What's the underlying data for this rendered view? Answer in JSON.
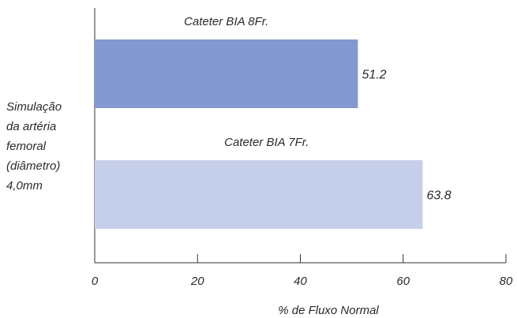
{
  "chart_data": {
    "type": "bar",
    "orientation": "horizontal",
    "categories": [
      "Cateter BIA 8Fr.",
      "Cateter BIA 7Fr."
    ],
    "values": [
      51.2,
      63.8
    ],
    "data_labels": [
      "51.2",
      "63.8"
    ],
    "colors": [
      "#8399d0",
      "#c6cfe9"
    ],
    "xlabel": "% de Fluxo Normal",
    "ylabel_lines": [
      "Simulação",
      "da artéria",
      "femoral",
      "(diâmetro)",
      "4,0mm"
    ],
    "xlim": [
      0,
      80
    ],
    "xticks": [
      "0",
      "20",
      "40",
      "60",
      "80"
    ],
    "grid": false,
    "legend": "none"
  }
}
